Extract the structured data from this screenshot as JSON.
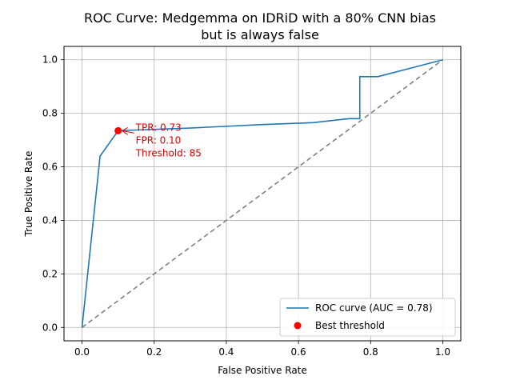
{
  "chart_data": {
    "type": "line",
    "title_lines": [
      "ROC Curve: Medgemma on IDRiD with a 80% CNN bias",
      "but is always false"
    ],
    "xlabel": "False Positive Rate",
    "ylabel": "True Positive Rate",
    "xlim": [
      -0.05,
      1.05
    ],
    "ylim": [
      -0.05,
      1.05
    ],
    "xticks": [
      0.0,
      0.2,
      0.4,
      0.6,
      0.8,
      1.0
    ],
    "yticks": [
      0.0,
      0.2,
      0.4,
      0.6,
      0.8,
      1.0
    ],
    "xtick_labels": [
      "0.0",
      "0.2",
      "0.4",
      "0.6",
      "0.8",
      "1.0"
    ],
    "ytick_labels": [
      "0.0",
      "0.2",
      "0.4",
      "0.6",
      "0.8",
      "1.0"
    ],
    "grid": true,
    "series": [
      {
        "name": "ROC curve (AUC = 0.78)",
        "color": "#1f77b4",
        "x": [
          0.0,
          0.05,
          0.1,
          0.3,
          0.5,
          0.64,
          0.74,
          0.77,
          0.77,
          0.82,
          1.0
        ],
        "y": [
          0.0,
          0.64,
          0.735,
          0.745,
          0.758,
          0.765,
          0.78,
          0.78,
          0.937,
          0.937,
          1.0
        ]
      }
    ],
    "diagonal": {
      "x": [
        0.0,
        1.0
      ],
      "y": [
        0.0,
        1.0
      ],
      "color": "#808080",
      "style": "dashed"
    },
    "best_point": {
      "name": "Best threshold",
      "x": 0.1,
      "y": 0.735,
      "color": "#ff0000",
      "annotation_lines": [
        "TPR: 0.73",
        "FPR: 0.10",
        "Threshold: 85"
      ],
      "annotation_color": "#e00000"
    },
    "legend_placement": "lower-right"
  }
}
